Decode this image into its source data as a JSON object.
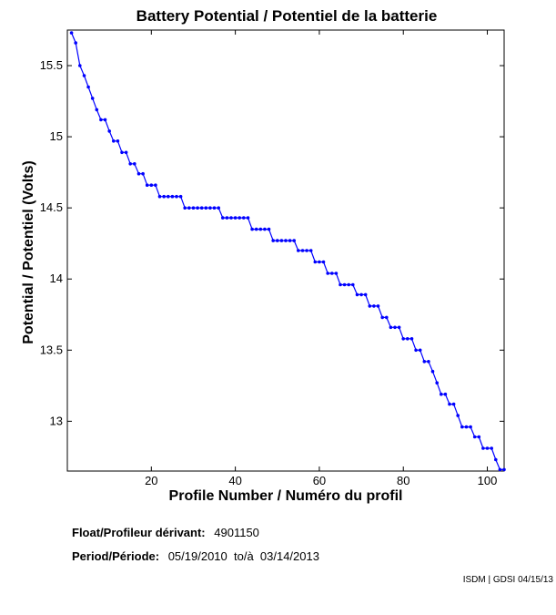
{
  "chart_data": {
    "type": "line",
    "title": "Battery Potential / Potentiel de la batterie",
    "xlabel": "Profile Number / Numéro du profil",
    "ylabel": "Potential / Potentiel (Volts)",
    "xlim": [
      0,
      104
    ],
    "ylim": [
      12.65,
      15.75
    ],
    "xticks": [
      20,
      40,
      60,
      80,
      100
    ],
    "yticks": [
      13,
      13.5,
      14,
      14.5,
      15,
      15.5
    ],
    "grid": false,
    "marker": "dot",
    "series": [
      {
        "name": "",
        "color": "#0000ff",
        "x": [
          1,
          2,
          3,
          4,
          5,
          6,
          7,
          8,
          9,
          10,
          11,
          12,
          13,
          14,
          15,
          16,
          17,
          18,
          19,
          20,
          21,
          22,
          23,
          24,
          25,
          26,
          27,
          28,
          29,
          30,
          31,
          32,
          33,
          34,
          35,
          36,
          37,
          38,
          39,
          40,
          41,
          42,
          43,
          44,
          45,
          46,
          47,
          48,
          49,
          50,
          51,
          52,
          53,
          54,
          55,
          56,
          57,
          58,
          59,
          60,
          61,
          62,
          63,
          64,
          65,
          66,
          67,
          68,
          69,
          70,
          71,
          72,
          73,
          74,
          75,
          76,
          77,
          78,
          79,
          80,
          81,
          82,
          83,
          84,
          85,
          86,
          87,
          88,
          89,
          90,
          91,
          92,
          93,
          94,
          95,
          96,
          97,
          98,
          99,
          100,
          101,
          102,
          103,
          104
        ],
        "y": [
          15.73,
          15.66,
          15.5,
          15.43,
          15.35,
          15.27,
          15.19,
          15.12,
          15.12,
          15.04,
          14.97,
          14.97,
          14.89,
          14.89,
          14.81,
          14.81,
          14.74,
          14.74,
          14.66,
          14.66,
          14.66,
          14.58,
          14.58,
          14.58,
          14.58,
          14.58,
          14.58,
          14.5,
          14.5,
          14.5,
          14.5,
          14.5,
          14.5,
          14.5,
          14.5,
          14.5,
          14.43,
          14.43,
          14.43,
          14.43,
          14.43,
          14.43,
          14.43,
          14.35,
          14.35,
          14.35,
          14.35,
          14.35,
          14.27,
          14.27,
          14.27,
          14.27,
          14.27,
          14.27,
          14.2,
          14.2,
          14.2,
          14.2,
          14.12,
          14.12,
          14.12,
          14.04,
          14.04,
          14.04,
          13.96,
          13.96,
          13.96,
          13.96,
          13.89,
          13.89,
          13.89,
          13.81,
          13.81,
          13.81,
          13.73,
          13.73,
          13.66,
          13.66,
          13.66,
          13.58,
          13.58,
          13.58,
          13.5,
          13.5,
          13.42,
          13.42,
          13.35,
          13.27,
          13.19,
          13.19,
          13.12,
          13.12,
          13.04,
          12.96,
          12.96,
          12.96,
          12.89,
          12.89,
          12.81,
          12.81,
          12.81,
          12.73,
          12.66,
          12.66
        ]
      }
    ]
  },
  "info": {
    "float_label": "Float/Profileur dérivant:",
    "float_value": "4901150",
    "period_label": "Period/Période:",
    "period_value": "05/19/2010  to/à  03/14/2013"
  },
  "credit": "ISDM | GDSI 04/15/13"
}
